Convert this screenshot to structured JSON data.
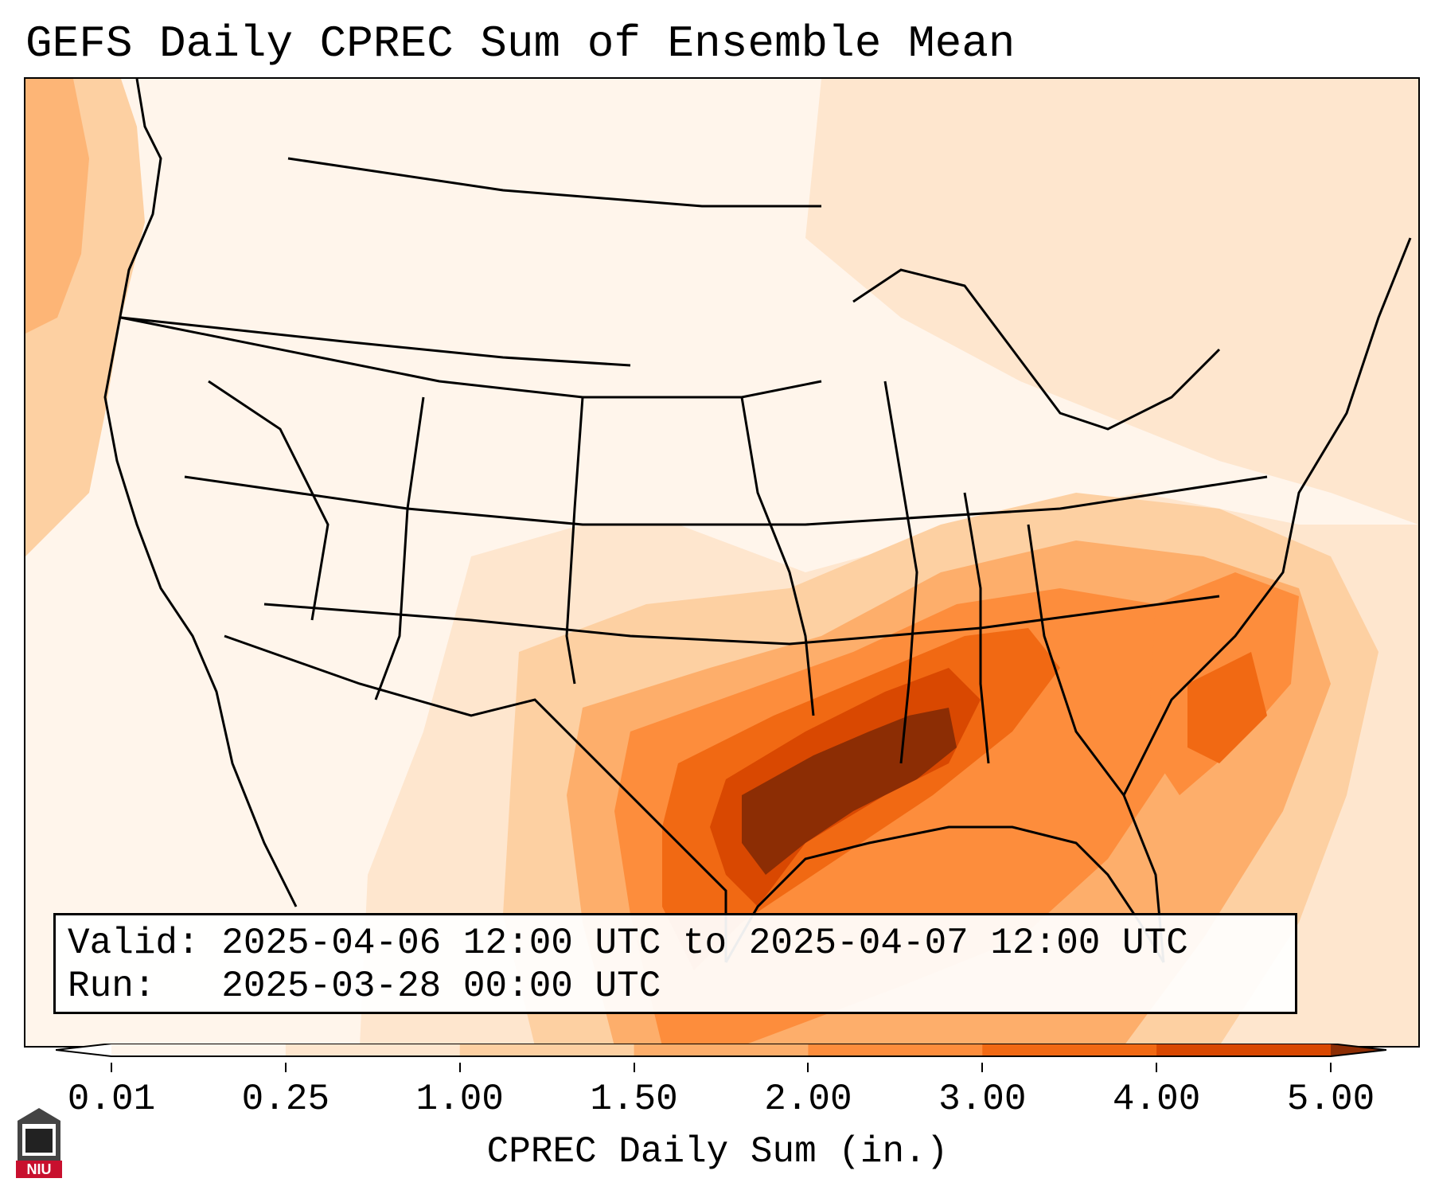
{
  "title": "GEFS Daily CPREC Sum of Ensemble Mean",
  "info": {
    "valid_line": "Valid: 2025-04-06 12:00 UTC to 2025-04-07 12:00 UTC",
    "run_line": "Run:   2025-03-28 00:00 UTC"
  },
  "colorbar": {
    "label": "CPREC Daily Sum (in.)",
    "ticks": [
      "0.01",
      "0.25",
      "1.00",
      "1.50",
      "2.00",
      "3.00",
      "4.00",
      "5.00"
    ],
    "colors": [
      "#fff5eb",
      "#fee6ce",
      "#fdd0a2",
      "#fdae6b",
      "#fd8d3c",
      "#f16913",
      "#d94801",
      "#8c2d04"
    ]
  },
  "logo": {
    "text": "NIU",
    "color": "#c8102e"
  }
}
